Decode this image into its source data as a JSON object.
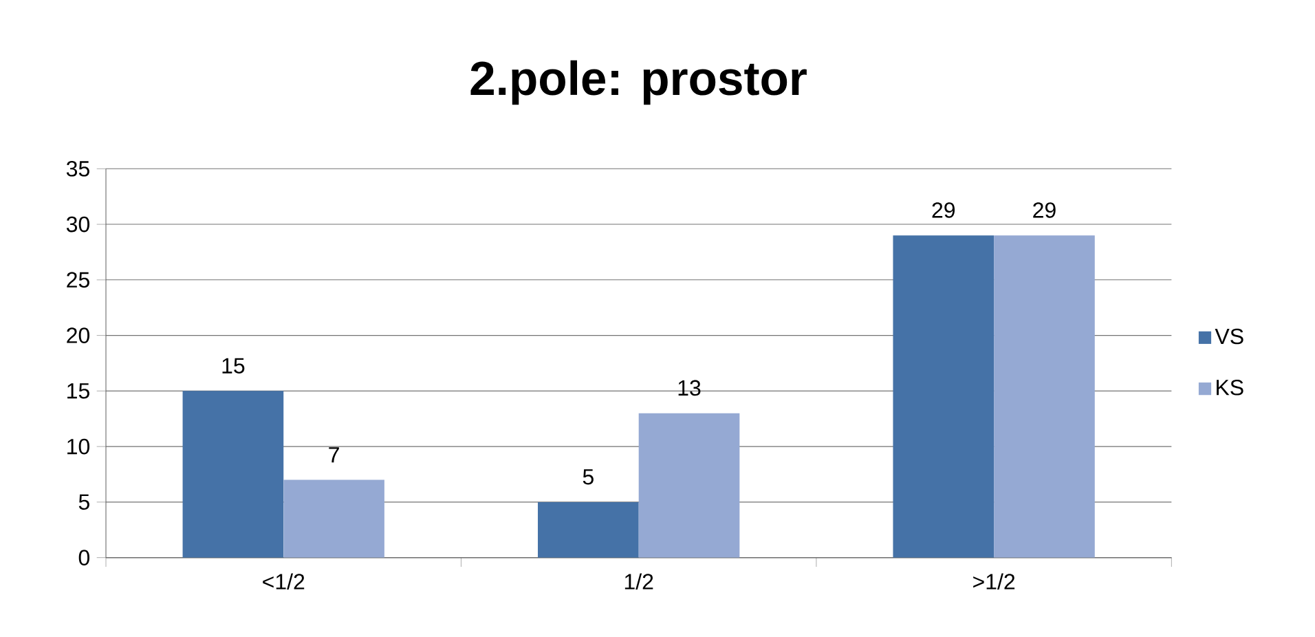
{
  "chart_data": {
    "type": "bar",
    "title": "2.pole: prostor",
    "categories": [
      "<1/2",
      "1/2",
      ">1/2"
    ],
    "series": [
      {
        "name": "VS",
        "color": "#4572a7",
        "values": [
          15,
          5,
          29
        ]
      },
      {
        "name": "KS",
        "color": "#95a9d3",
        "values": [
          7,
          13,
          29
        ]
      }
    ],
    "ylim": [
      0,
      35
    ],
    "yticks": [
      0,
      5,
      10,
      15,
      20,
      25,
      30,
      35
    ],
    "grid": "y",
    "legend": "right",
    "data_labels": true
  }
}
